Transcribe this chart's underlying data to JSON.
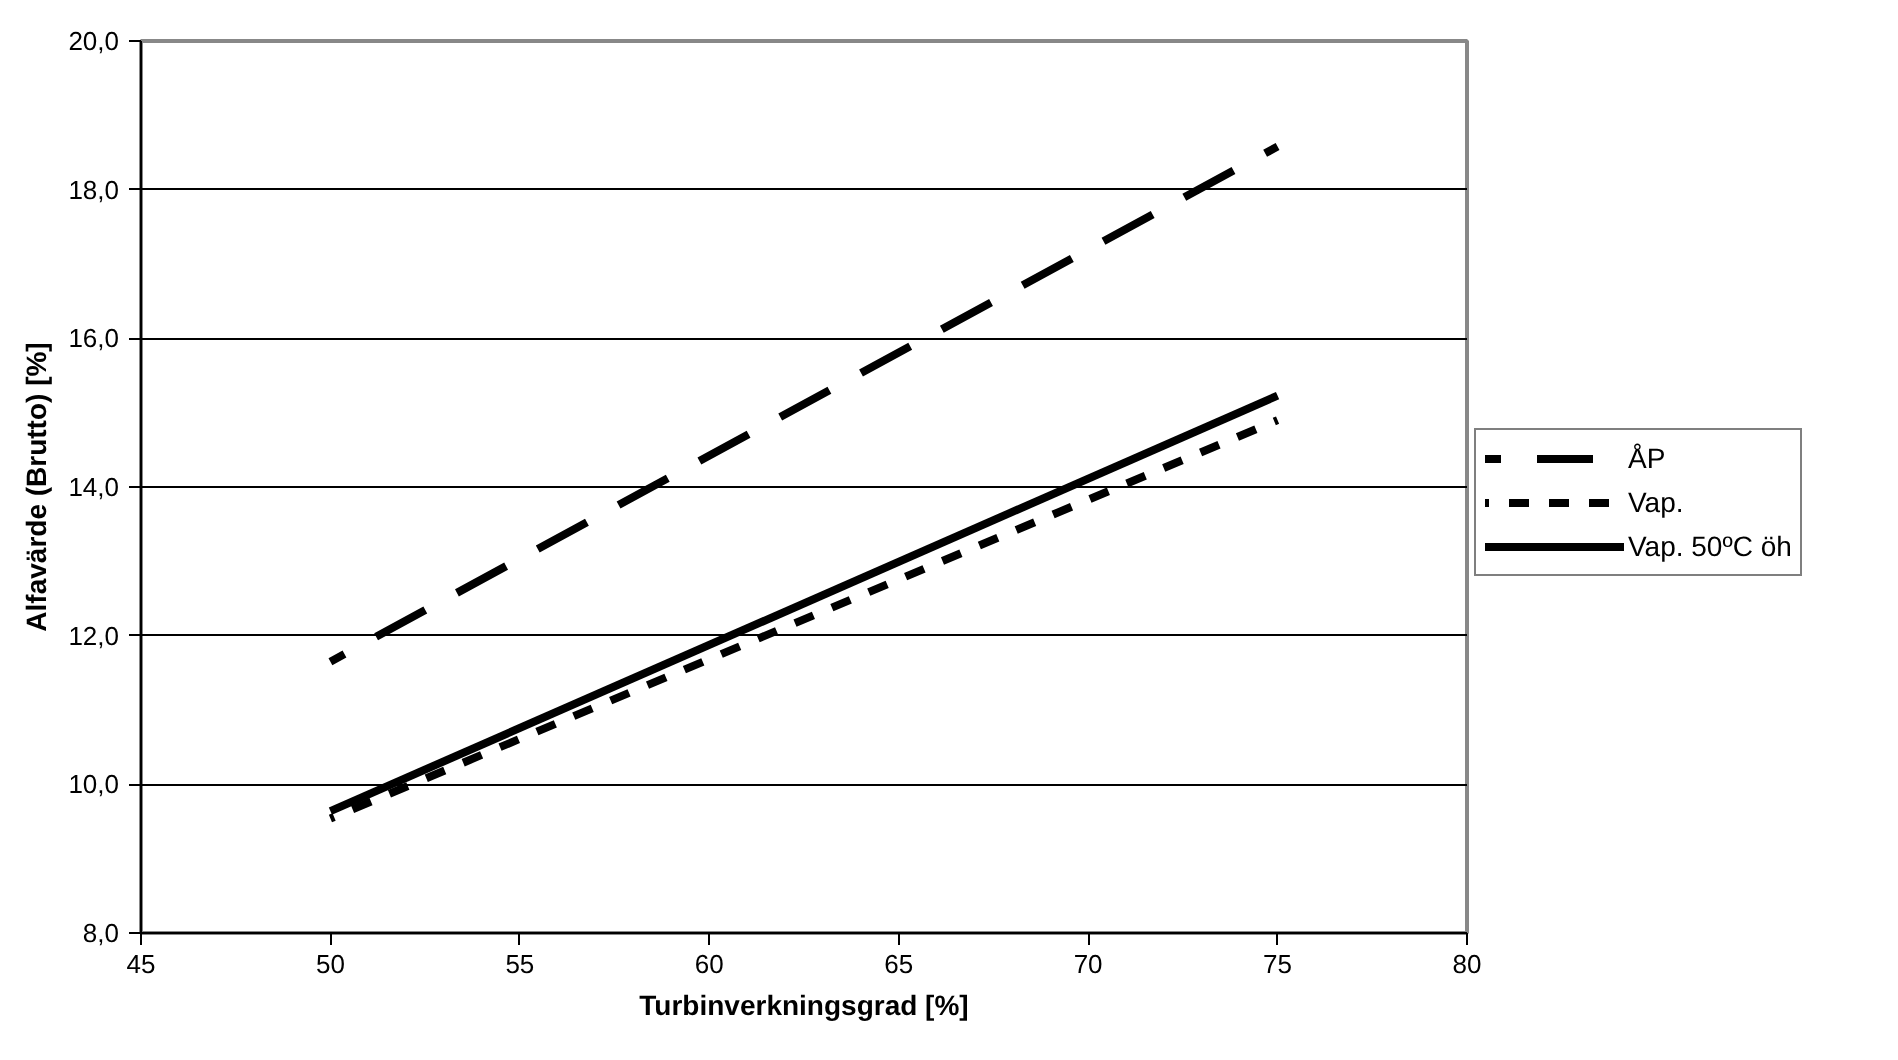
{
  "chart_data": {
    "type": "line",
    "xlabel": "Turbinverkningsgrad [%]",
    "ylabel": "Alfavärde (Brutto) [%]",
    "xlim": [
      45,
      80
    ],
    "xticks": [
      45,
      50,
      55,
      60,
      65,
      70,
      75,
      80
    ],
    "ylim": [
      8,
      20
    ],
    "yticks": [
      {
        "value": 8,
        "label": "8,0"
      },
      {
        "value": 10,
        "label": "10,0"
      },
      {
        "value": 12,
        "label": "12,0"
      },
      {
        "value": 14,
        "label": "14,0"
      },
      {
        "value": 16,
        "label": "16,0"
      },
      {
        "value": 18,
        "label": "18,0"
      },
      {
        "value": 20,
        "label": "20,0"
      }
    ],
    "grid": "y",
    "legend": "right",
    "marker": "none",
    "x": [
      50,
      75
    ],
    "series": [
      {
        "name": "ÅP",
        "color": "#000000",
        "line_style": "dashed",
        "values": [
          11.65,
          18.58
        ]
      },
      {
        "name": "Vap.",
        "color": "#000000",
        "line_style": "dotted",
        "values": [
          9.54,
          14.9
        ]
      },
      {
        "name": "Vap. 50ºC öh",
        "color": "#000000",
        "line_style": "solid",
        "values": [
          9.64,
          15.23
        ]
      }
    ]
  }
}
